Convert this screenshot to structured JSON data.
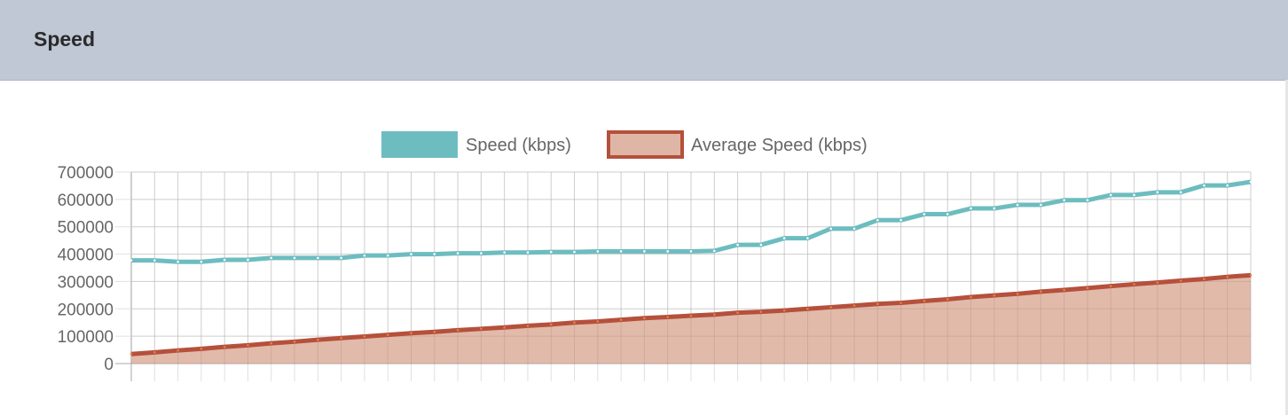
{
  "header": {
    "title": "Speed"
  },
  "colors": {
    "speed": "#6dbdc0",
    "average_line": "#b5503c",
    "average_fill": "#dfb6a5",
    "header_bg": "#bfc8d4"
  },
  "chart_data": {
    "type": "line",
    "legend_position": "top",
    "grid": true,
    "ylim": [
      0,
      700000
    ],
    "yticks": [
      "0",
      "100000",
      "200000",
      "300000",
      "400000",
      "500000",
      "600000",
      "700000"
    ],
    "series": [
      {
        "name": "Speed (kbps)",
        "fill": false,
        "values": [
          377000,
          377000,
          372000,
          372000,
          379000,
          379000,
          386000,
          386000,
          386000,
          386000,
          395000,
          395000,
          400000,
          400000,
          403000,
          403000,
          406000,
          406000,
          408000,
          408000,
          410000,
          410000,
          410000,
          410000,
          410000,
          412000,
          434000,
          434000,
          458000,
          458000,
          493000,
          493000,
          524000,
          524000,
          546000,
          546000,
          567000,
          567000,
          580000,
          580000,
          597000,
          597000,
          616000,
          616000,
          626000,
          626000,
          651000,
          651000,
          664000
        ]
      },
      {
        "name": "Average Speed (kbps)",
        "fill": true,
        "values": [
          35000,
          41000,
          48000,
          54000,
          61000,
          67000,
          74000,
          80000,
          87000,
          93000,
          99000,
          105000,
          111000,
          116000,
          122000,
          127000,
          132000,
          138000,
          143000,
          150000,
          154000,
          160000,
          166000,
          170000,
          175000,
          179000,
          186000,
          189000,
          194000,
          200000,
          206000,
          212000,
          218000,
          222000,
          229000,
          235000,
          243000,
          249000,
          255000,
          263000,
          269000,
          276000,
          283000,
          290000,
          296000,
          303000,
          309000,
          317000,
          323000
        ]
      }
    ]
  }
}
